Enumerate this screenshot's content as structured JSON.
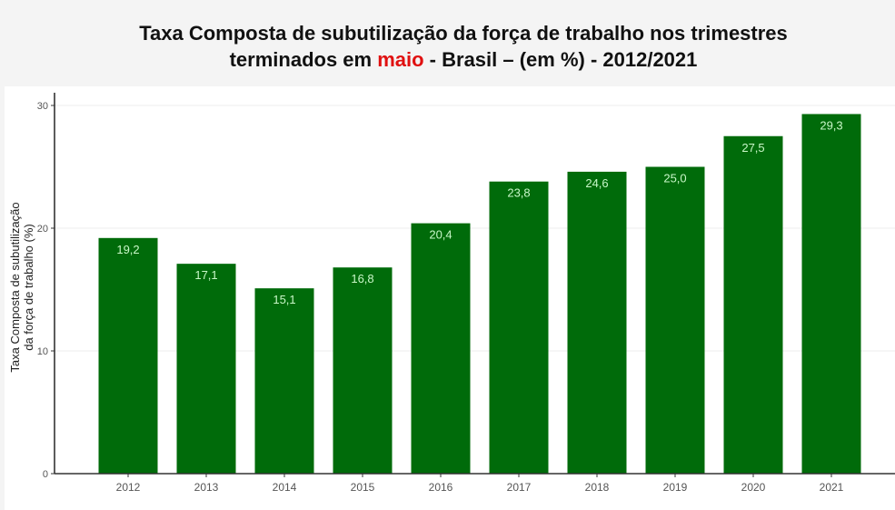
{
  "title": {
    "line1": "Taxa Composta de subutilização da força de trabalho nos trimestres",
    "line2_before": "terminados em ",
    "line2_highlight": "maio",
    "line2_after": " - Brasil – (em %) - 2012/2021"
  },
  "colors": {
    "bar": "#006b0a",
    "highlight": "#e01010",
    "data_label": "#c8f7c8"
  },
  "chart_data": {
    "type": "bar",
    "title": "Taxa Composta de subutilização da força de trabalho nos trimestres terminados em maio - Brasil – (em %) - 2012/2021",
    "xlabel": "",
    "ylabel": "Taxa Composta de subutilização da força de trabalho (%)",
    "ylabel_lines": [
      "Taxa Composta de subutilização",
      "da força de trabalho (%)"
    ],
    "categories": [
      "2012",
      "2013",
      "2014",
      "2015",
      "2016",
      "2017",
      "2018",
      "2019",
      "2020",
      "2021"
    ],
    "values": [
      19.2,
      17.1,
      15.1,
      16.8,
      20.4,
      23.8,
      24.6,
      25.0,
      27.5,
      29.3
    ],
    "data_labels": [
      "19,2",
      "17,1",
      "15,1",
      "16,8",
      "20,4",
      "23,8",
      "24,6",
      "25,0",
      "27,5",
      "29,3"
    ],
    "yticks": [
      0,
      10,
      20,
      30
    ],
    "ylim": [
      0,
      30
    ],
    "grid": true,
    "legend": "none"
  }
}
